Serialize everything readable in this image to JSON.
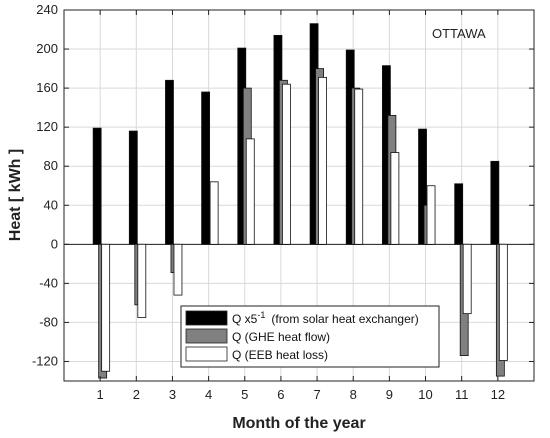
{
  "chart_data": {
    "type": "bar",
    "annotation": "OTTAWA",
    "xlabel": "Month of the year",
    "ylabel": "Heat [ kWh ]",
    "ylim": [
      -140,
      240
    ],
    "yticks": [
      240,
      200,
      160,
      120,
      80,
      40,
      0,
      -40,
      -80,
      -120
    ],
    "categories": [
      "1",
      "2",
      "3",
      "4",
      "5",
      "6",
      "7",
      "8",
      "9",
      "10",
      "11",
      "12"
    ],
    "grid": true,
    "legend_position": "bottom-right",
    "series": [
      {
        "legend_label": "Q x5",
        "legend_superscript": "-1",
        "legend_suffix": "(from solar heat exchanger)",
        "color": "#000000",
        "values": [
          119,
          116,
          168,
          156,
          201,
          214,
          226,
          199,
          183,
          118,
          62,
          85
        ]
      },
      {
        "legend_label": "Q  (GHE heat flow)",
        "color": "#808080",
        "values": [
          -137,
          -62,
          -29,
          0,
          160,
          168,
          180,
          160,
          132,
          40,
          -114,
          -135
        ]
      },
      {
        "legend_label": "Q  (EEB heat loss)",
        "color": "#ffffff",
        "values": [
          -130,
          -75,
          -52,
          64,
          108,
          164,
          171,
          159,
          94,
          60,
          -71,
          -119
        ]
      }
    ]
  }
}
